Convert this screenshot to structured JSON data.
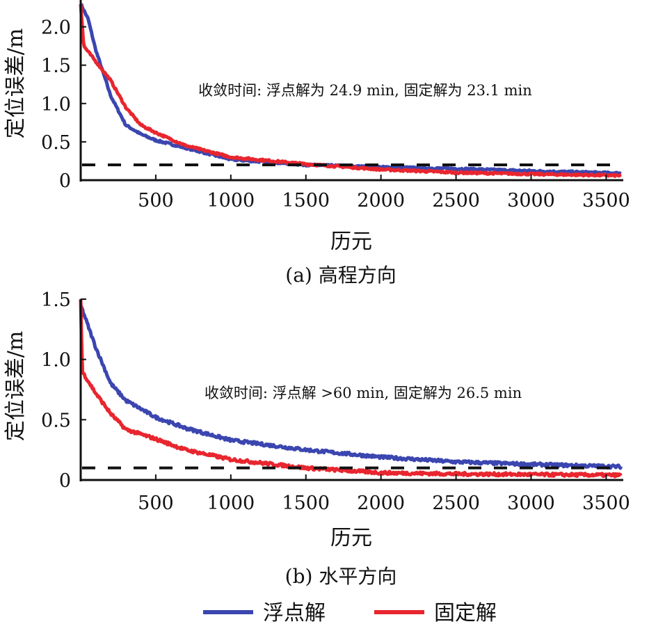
{
  "chart_data": [
    {
      "type": "line",
      "caption": "(a) 高程方向",
      "xlabel": "历元",
      "ylabel": "定位误差/m",
      "annotation": "收敛时间: 浮点解为 24.9 min, 固定解为 23.1 min",
      "xlim": [
        0,
        3600
      ],
      "ylim": [
        0,
        2.35
      ],
      "xticks": [
        500,
        1000,
        1500,
        2000,
        2500,
        3000,
        3500
      ],
      "xtick_labels": [
        "500",
        "1000",
        "1500",
        "2000",
        "2500",
        "3000",
        "3500"
      ],
      "yticks": [
        0,
        0.5,
        1.0,
        1.5,
        2.0
      ],
      "ytick_labels": [
        "0",
        "0.5",
        "1.0",
        "1.5",
        "2.0"
      ],
      "threshold": 0.2,
      "series": [
        {
          "name": "浮点解",
          "color": "#3b46b0",
          "x": [
            0,
            50,
            100,
            200,
            300,
            400,
            500,
            700,
            1000,
            1500,
            2000,
            2500,
            3000,
            3600
          ],
          "y": [
            2.3,
            2.1,
            1.7,
            1.1,
            0.72,
            0.6,
            0.52,
            0.42,
            0.27,
            0.2,
            0.17,
            0.15,
            0.12,
            0.09
          ]
        },
        {
          "name": "固定解",
          "color": "#e8262f",
          "x": [
            0,
            20,
            100,
            200,
            300,
            400,
            500,
            700,
            1000,
            1500,
            2000,
            2500,
            3000,
            3600
          ],
          "y": [
            2.3,
            1.75,
            1.55,
            1.3,
            0.95,
            0.72,
            0.62,
            0.45,
            0.3,
            0.21,
            0.14,
            0.1,
            0.08,
            0.06
          ]
        }
      ]
    },
    {
      "type": "line",
      "caption": "(b) 水平方向",
      "xlabel": "历元",
      "ylabel": "定位误差/m",
      "annotation": "收敛时间: 浮点解 >60 min, 固定解为 26.5 min",
      "xlim": [
        0,
        3600
      ],
      "ylim": [
        0,
        1.5
      ],
      "xticks": [
        500,
        1000,
        1500,
        2000,
        2500,
        3000,
        3500
      ],
      "xtick_labels": [
        "500",
        "1000",
        "1500",
        "2000",
        "2500",
        "3000",
        "3500"
      ],
      "yticks": [
        0,
        0.5,
        1.0,
        1.5
      ],
      "ytick_labels": [
        "0",
        "0.5",
        "1.0",
        "1.5"
      ],
      "threshold": 0.1,
      "series": [
        {
          "name": "浮点解",
          "color": "#3b46b0",
          "x": [
            0,
            100,
            200,
            300,
            500,
            700,
            1000,
            1500,
            2000,
            2500,
            3000,
            3600
          ],
          "y": [
            1.45,
            1.1,
            0.8,
            0.66,
            0.52,
            0.43,
            0.33,
            0.25,
            0.19,
            0.15,
            0.13,
            0.11
          ]
        },
        {
          "name": "固定解",
          "color": "#e8262f",
          "x": [
            0,
            10,
            100,
            200,
            300,
            500,
            700,
            1000,
            1500,
            2000,
            2500,
            3600
          ],
          "y": [
            1.5,
            0.9,
            0.72,
            0.55,
            0.42,
            0.34,
            0.25,
            0.17,
            0.1,
            0.06,
            0.05,
            0.04
          ]
        }
      ]
    }
  ],
  "legend": [
    {
      "label": "浮点解",
      "color": "#3b46b0"
    },
    {
      "label": "固定解",
      "color": "#e8262f"
    }
  ]
}
